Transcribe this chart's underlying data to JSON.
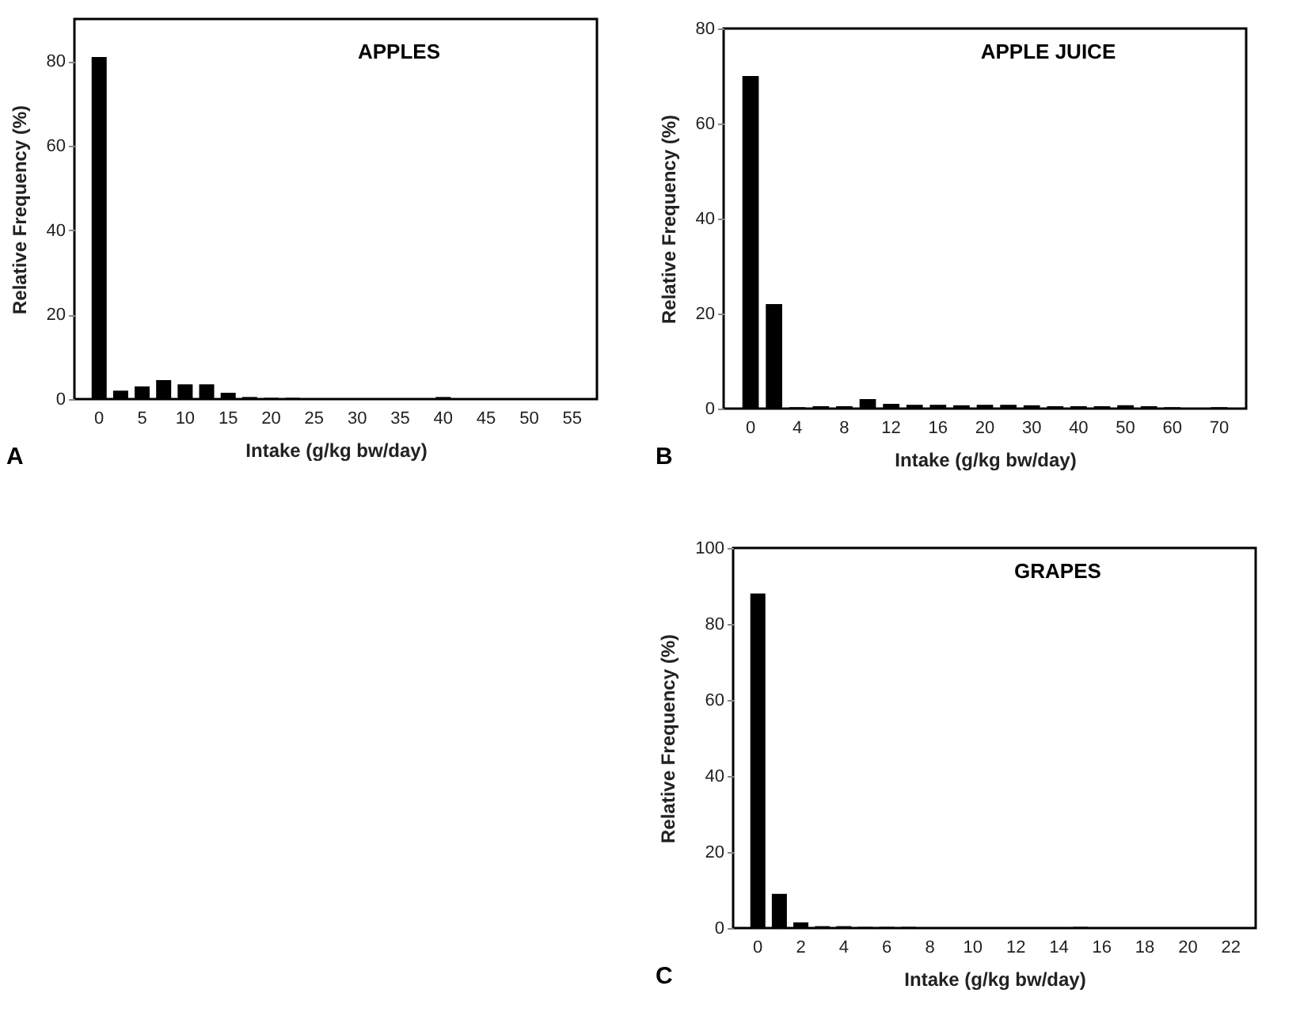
{
  "chart_data": [
    {
      "type": "bar",
      "title": "APPLES",
      "xlabel": "Intake (g/kg bw/day)",
      "ylabel": "Relative Frequency (%)",
      "annotations": [
        "A"
      ],
      "color": "#000000",
      "ylim": [
        0,
        90
      ],
      "yticks": [
        0,
        20,
        40,
        60,
        80
      ],
      "categories": [
        "0",
        null,
        "5",
        null,
        "10",
        null,
        "15",
        null,
        "20",
        null,
        "25",
        null,
        "30",
        null,
        "35",
        null,
        "40",
        null,
        "45",
        null,
        "50",
        null,
        "55"
      ],
      "values": [
        81,
        2,
        3,
        4.5,
        3.5,
        3.5,
        1.5,
        0.5,
        0.3,
        0.3,
        0.2,
        0.2,
        0.2,
        0.2,
        0.2,
        0.2,
        0.5,
        0.1,
        0.1,
        0.1,
        0.1,
        0.1,
        0.1
      ]
    },
    {
      "type": "bar",
      "title": "APPLE JUICE",
      "xlabel": "Intake (g/kg bw/day)",
      "ylabel": "Relative Frequency (%)",
      "annotations": [
        "B"
      ],
      "color": "#000000",
      "ylim": [
        0,
        80
      ],
      "yticks": [
        0,
        20,
        40,
        60,
        80
      ],
      "categories": [
        "0",
        null,
        "4",
        null,
        "8",
        null,
        "12",
        null,
        "16",
        null,
        "20",
        null,
        "30",
        null,
        "40",
        null,
        "50",
        null,
        "60",
        null,
        "70"
      ],
      "values": [
        70,
        22,
        0.3,
        0.5,
        0.5,
        2,
        1,
        0.8,
        0.8,
        0.7,
        0.8,
        0.8,
        0.7,
        0.5,
        0.5,
        0.5,
        0.7,
        0.5,
        0.3,
        0,
        0.3
      ]
    },
    {
      "type": "bar",
      "title": "GRAPES",
      "xlabel": "Intake (g/kg bw/day)",
      "ylabel": "Relative Frequency (%)",
      "annotations": [
        "C"
      ],
      "color": "#000000",
      "ylim": [
        0,
        100
      ],
      "yticks": [
        0,
        20,
        40,
        60,
        80,
        100
      ],
      "categories": [
        "0",
        null,
        "2",
        null,
        "4",
        null,
        "6",
        null,
        "8",
        null,
        "10",
        null,
        "12",
        null,
        "14",
        null,
        "16",
        null,
        "18",
        null,
        "20",
        null,
        "22"
      ],
      "values": [
        88,
        9,
        1.5,
        0.5,
        0.5,
        0.3,
        0.3,
        0.3,
        0.2,
        0.2,
        0.2,
        0.2,
        0.2,
        0.2,
        0.2,
        0.3,
        0.2,
        0.2,
        0.2,
        0.2,
        0.2,
        0.2,
        0.1
      ]
    }
  ]
}
